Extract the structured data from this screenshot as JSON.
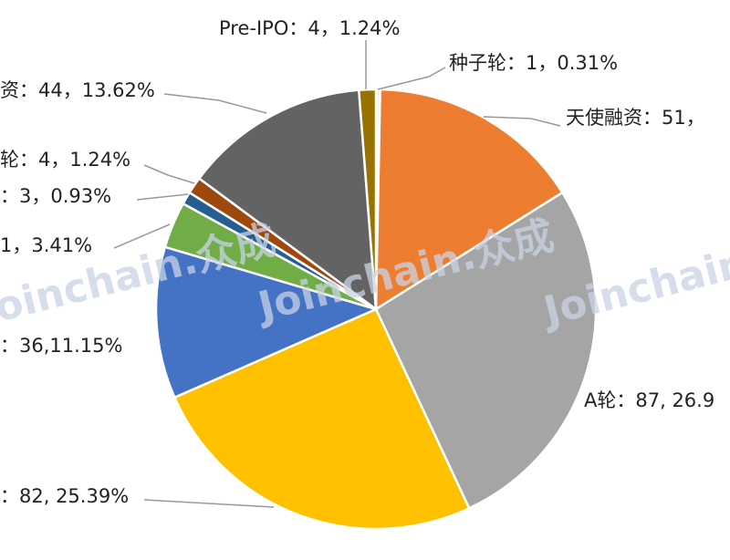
{
  "chart_data": {
    "type": "pie",
    "watermark": "Joinchain.众成",
    "slices": [
      {
        "label": "种子轮：1，0.31%",
        "value": 1,
        "color": "#f7f7f7"
      },
      {
        "label": "天使融资：51，",
        "value": 51,
        "color": "#ed7d31"
      },
      {
        "label": "A轮：87, 26.9",
        "value": 87,
        "color": "#a5a5a5"
      },
      {
        "label": "：82, 25.39%",
        "value": 82,
        "color": "#ffc000"
      },
      {
        "label": "：36,11.15%",
        "value": 36,
        "color": "#4472c4"
      },
      {
        "label": "1，3.41%",
        "value": 11,
        "color": "#70ad47"
      },
      {
        "label": "：3，0.93%",
        "value": 3,
        "color": "#255e91"
      },
      {
        "label": "轮：4，1.24%",
        "value": 4,
        "color": "#9e480e"
      },
      {
        "label": "资：44，13.62%",
        "value": 44,
        "color": "#636363"
      },
      {
        "label": "Pre-IPO：4，1.24%",
        "value": 4,
        "color": "#997300"
      }
    ]
  }
}
